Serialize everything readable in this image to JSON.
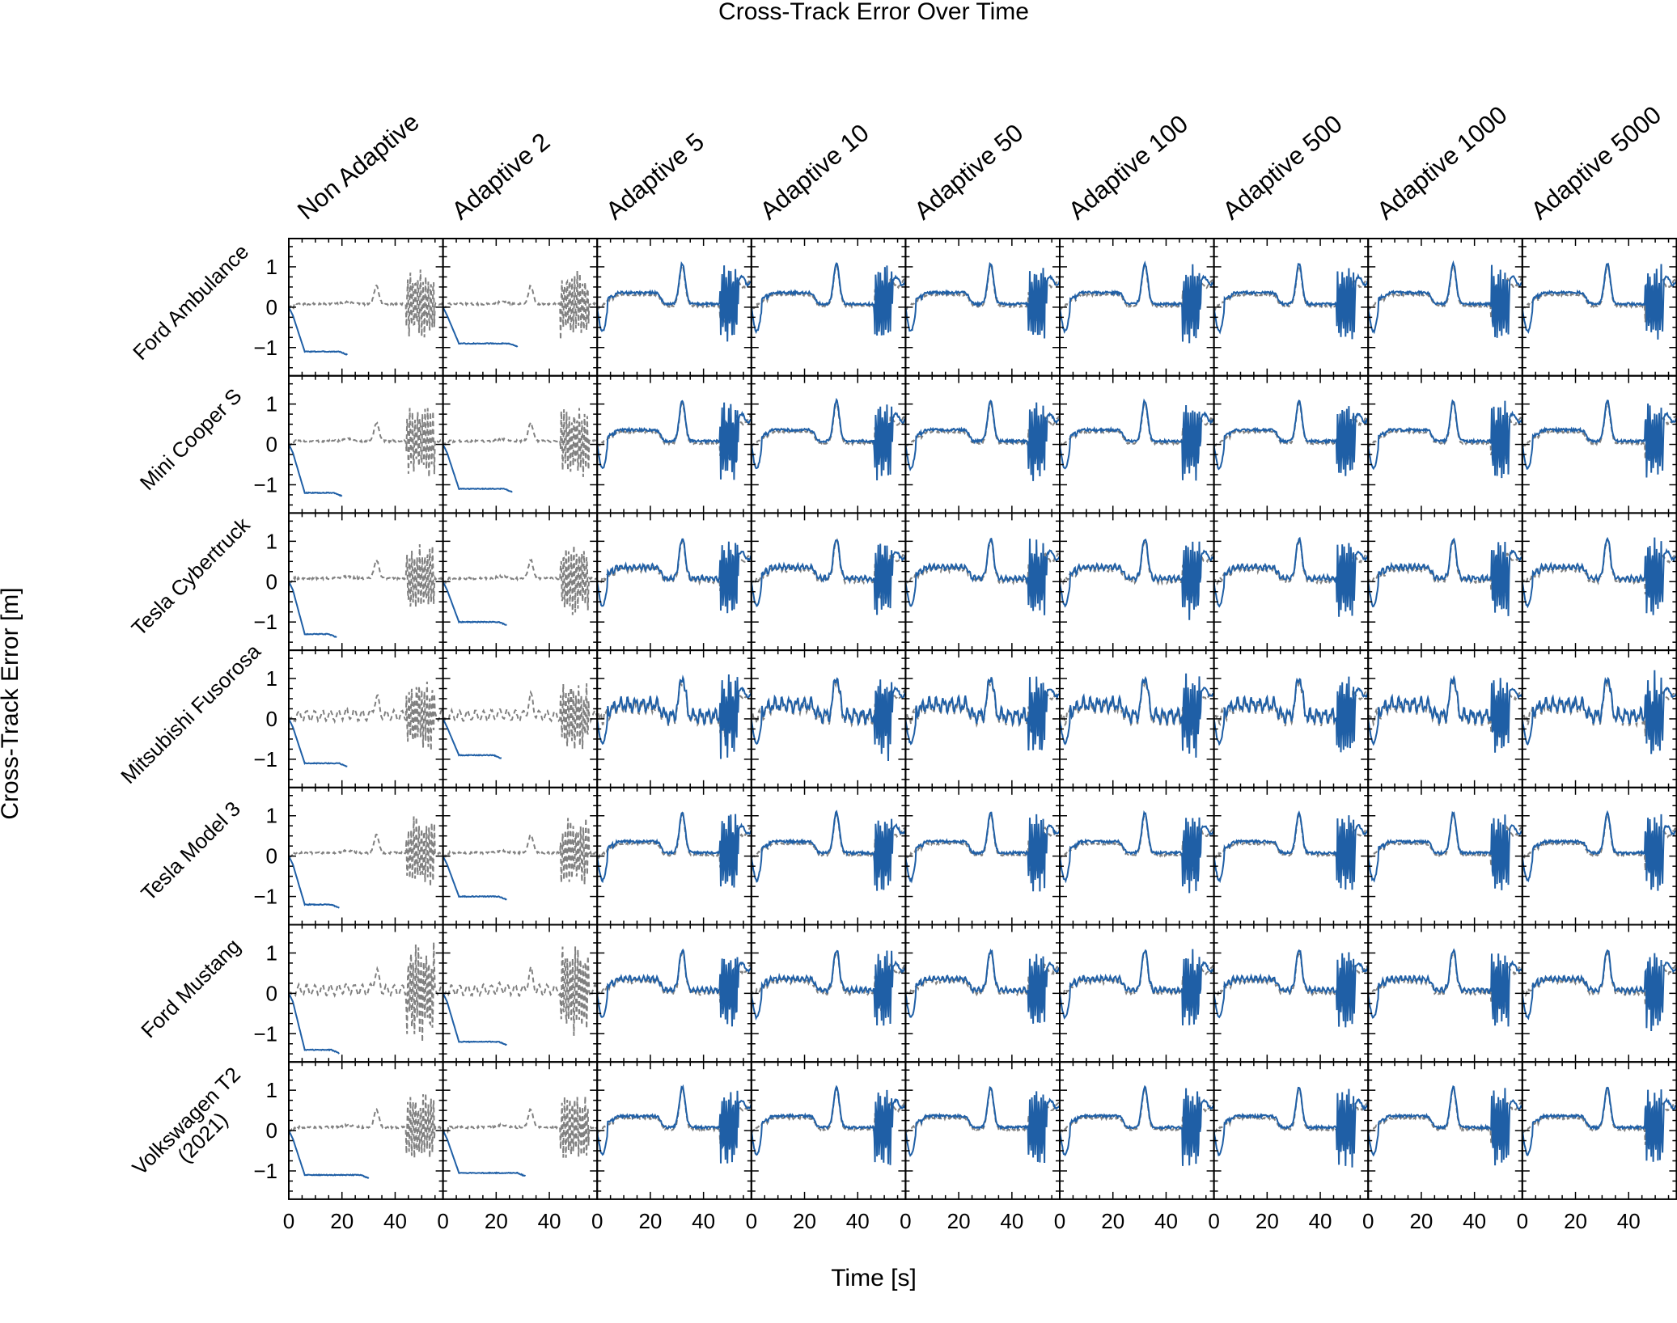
{
  "chart_data": {
    "type": "line",
    "title": "Cross-Track Error Over Time",
    "xlabel": "Time [s]",
    "ylabel": "Cross-Track Error [m]",
    "columns": [
      "Non Adaptive",
      "Adaptive 2",
      "Adaptive 5",
      "Adaptive 10",
      "Adaptive 50",
      "Adaptive 100",
      "Adaptive 500",
      "Adaptive 1000",
      "Adaptive 5000"
    ],
    "rows": [
      "Ford Ambulance",
      "Mini Cooper S",
      "Tesla Cybertruck",
      "Mitsubishi Fusorosa",
      "Tesla Model 3",
      "Ford Mustang",
      "Volkswagen T2 (2021)"
    ],
    "xlim": [
      0,
      58
    ],
    "ylim": [
      -1.7,
      1.7
    ],
    "xticks": [
      0,
      20,
      40
    ],
    "yticks": [
      -1,
      0,
      1
    ],
    "ytick_labels": [
      "−1",
      "0",
      "1"
    ],
    "grid": false,
    "series_styles": {
      "tracking": {
        "color": "#1f5fa6",
        "dash": "solid"
      },
      "reference": {
        "color": "#808080",
        "dash": "dashed"
      }
    },
    "non_adaptive_end_error": [
      [
        -1.1,
        -1.2,
        -1.3,
        -1.1,
        -1.2,
        -1.4,
        -1.1
      ],
      [
        -0.9,
        -1.1,
        -1.0,
        -0.9,
        -1.0,
        -1.2,
        -1.05
      ]
    ],
    "diverging_end_time": [
      [
        22,
        20,
        18,
        22,
        19,
        19,
        30
      ],
      [
        28,
        26,
        24,
        22,
        24,
        24,
        31
      ]
    ]
  }
}
